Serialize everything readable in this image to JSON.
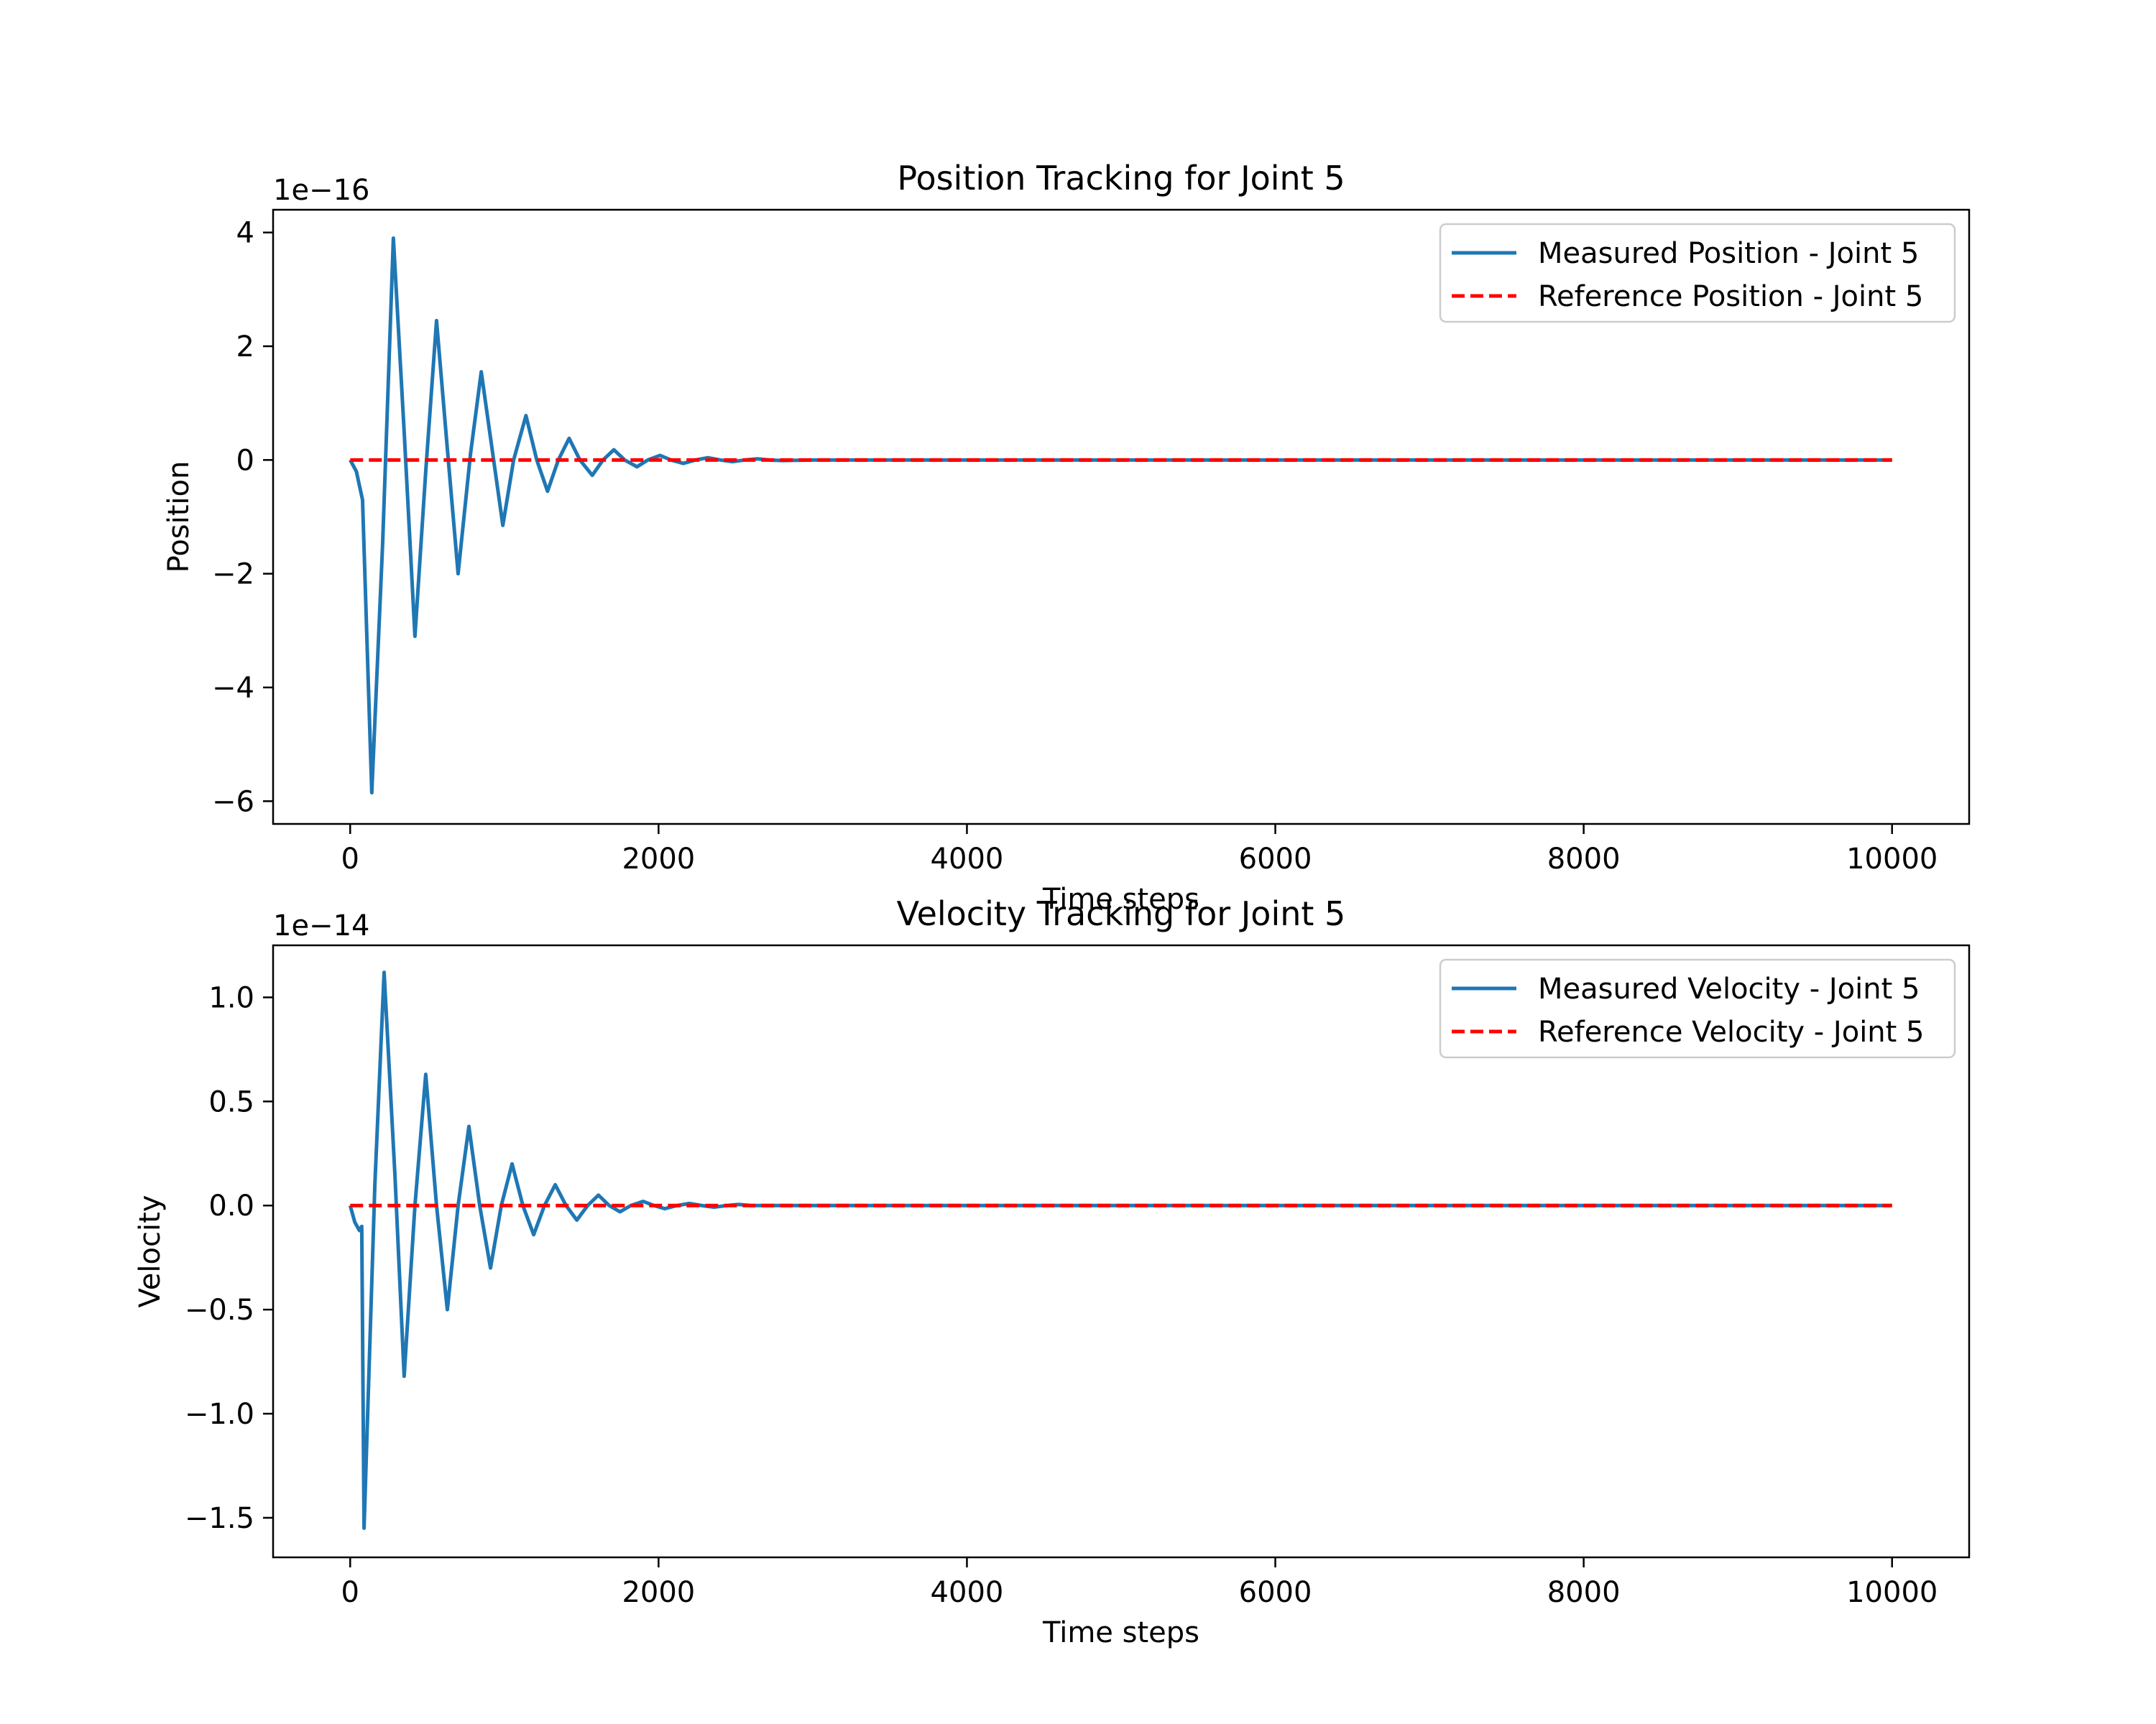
{
  "chart_data": [
    {
      "type": "line",
      "title": "Position Tracking for Joint 5",
      "xlabel": "Time steps",
      "ylabel": "Position",
      "y_offset_label": "1e−16",
      "y_scale": 1e-16,
      "xlim": [
        -500,
        10500
      ],
      "ylim": [
        -6.4,
        4.4
      ],
      "xticks": [
        0,
        2000,
        4000,
        6000,
        8000,
        10000
      ],
      "xtick_labels": [
        "0",
        "2000",
        "4000",
        "6000",
        "8000",
        "10000"
      ],
      "yticks": [
        4,
        2,
        0,
        -2,
        -4,
        -6
      ],
      "ytick_labels": [
        "4",
        "2",
        "0",
        "−2",
        "−4",
        "−6"
      ],
      "grid": false,
      "legend": "top-right",
      "series": [
        {
          "name": "Measured Position - Joint 5",
          "color": "#1f77b4",
          "style": "solid",
          "x": [
            0,
            40,
            80,
            140,
            210,
            280,
            350,
            420,
            490,
            560,
            630,
            700,
            780,
            850,
            920,
            990,
            1060,
            1140,
            1210,
            1280,
            1350,
            1420,
            1490,
            1570,
            1640,
            1710,
            1780,
            1860,
            1930,
            2010,
            2080,
            2160,
            2240,
            2320,
            2400,
            2480,
            2560,
            2640,
            2720,
            2800,
            3000,
            4000,
            6000,
            8000,
            10000
          ],
          "y": [
            0,
            -0.2,
            -0.7,
            -5.85,
            -1.5,
            3.9,
            0.5,
            -3.1,
            -0.2,
            2.45,
            0.2,
            -2.0,
            0.1,
            1.55,
            0.2,
            -1.15,
            0.0,
            0.78,
            0.0,
            -0.55,
            0.0,
            0.38,
            0.0,
            -0.27,
            0.0,
            0.18,
            0.0,
            -0.12,
            0.0,
            0.08,
            0.0,
            -0.06,
            0.0,
            0.04,
            0.0,
            -0.03,
            0.0,
            0.02,
            0.0,
            -0.01,
            0.0,
            0.0,
            0.0,
            0.0,
            0.0
          ]
        },
        {
          "name": "Reference Position - Joint 5",
          "color": "#ff0000",
          "style": "dashed",
          "x": [
            0,
            10000
          ],
          "y": [
            0,
            0
          ]
        }
      ]
    },
    {
      "type": "line",
      "title": "Velocity Tracking for Joint 5",
      "xlabel": "Time steps",
      "ylabel": "Velocity",
      "y_offset_label": "1e−14",
      "y_scale": 1e-14,
      "xlim": [
        -500,
        10500
      ],
      "ylim": [
        -1.69,
        1.25
      ],
      "xticks": [
        0,
        2000,
        4000,
        6000,
        8000,
        10000
      ],
      "xtick_labels": [
        "0",
        "2000",
        "4000",
        "6000",
        "8000",
        "10000"
      ],
      "yticks": [
        1.0,
        0.5,
        0.0,
        -0.5,
        -1.0,
        -1.5
      ],
      "ytick_labels": [
        "1.0",
        "0.5",
        "0.0",
        "−0.5",
        "−1.0",
        "−1.5"
      ],
      "grid": false,
      "legend": "top-right",
      "series": [
        {
          "name": "Measured Velocity - Joint 5",
          "color": "#1f77b4",
          "style": "solid",
          "x": [
            0,
            30,
            60,
            75,
            90,
            160,
            220,
            290,
            350,
            420,
            490,
            560,
            630,
            700,
            770,
            840,
            910,
            980,
            1050,
            1120,
            1190,
            1260,
            1330,
            1400,
            1470,
            1540,
            1610,
            1680,
            1750,
            1820,
            1900,
            1970,
            2040,
            2120,
            2200,
            2280,
            2360,
            2440,
            2520,
            2600,
            2700,
            3000,
            4000,
            6000,
            8000,
            10000
          ],
          "y": [
            0,
            -0.08,
            -0.12,
            -0.1,
            -1.55,
            0.1,
            1.12,
            0.15,
            -0.82,
            0.0,
            0.63,
            0.0,
            -0.5,
            0.0,
            0.38,
            0.0,
            -0.3,
            0.0,
            0.2,
            0.0,
            -0.14,
            0.0,
            0.1,
            0.0,
            -0.07,
            0.0,
            0.05,
            0.0,
            -0.03,
            0.0,
            0.02,
            0.0,
            -0.015,
            0.0,
            0.01,
            0.0,
            -0.008,
            0.0,
            0.005,
            0.0,
            0.0,
            0.0,
            0.0,
            0.0,
            0.0,
            0.0
          ]
        },
        {
          "name": "Reference Velocity - Joint 5",
          "color": "#ff0000",
          "style": "dashed",
          "x": [
            0,
            10000
          ],
          "y": [
            0,
            0
          ]
        }
      ]
    }
  ]
}
